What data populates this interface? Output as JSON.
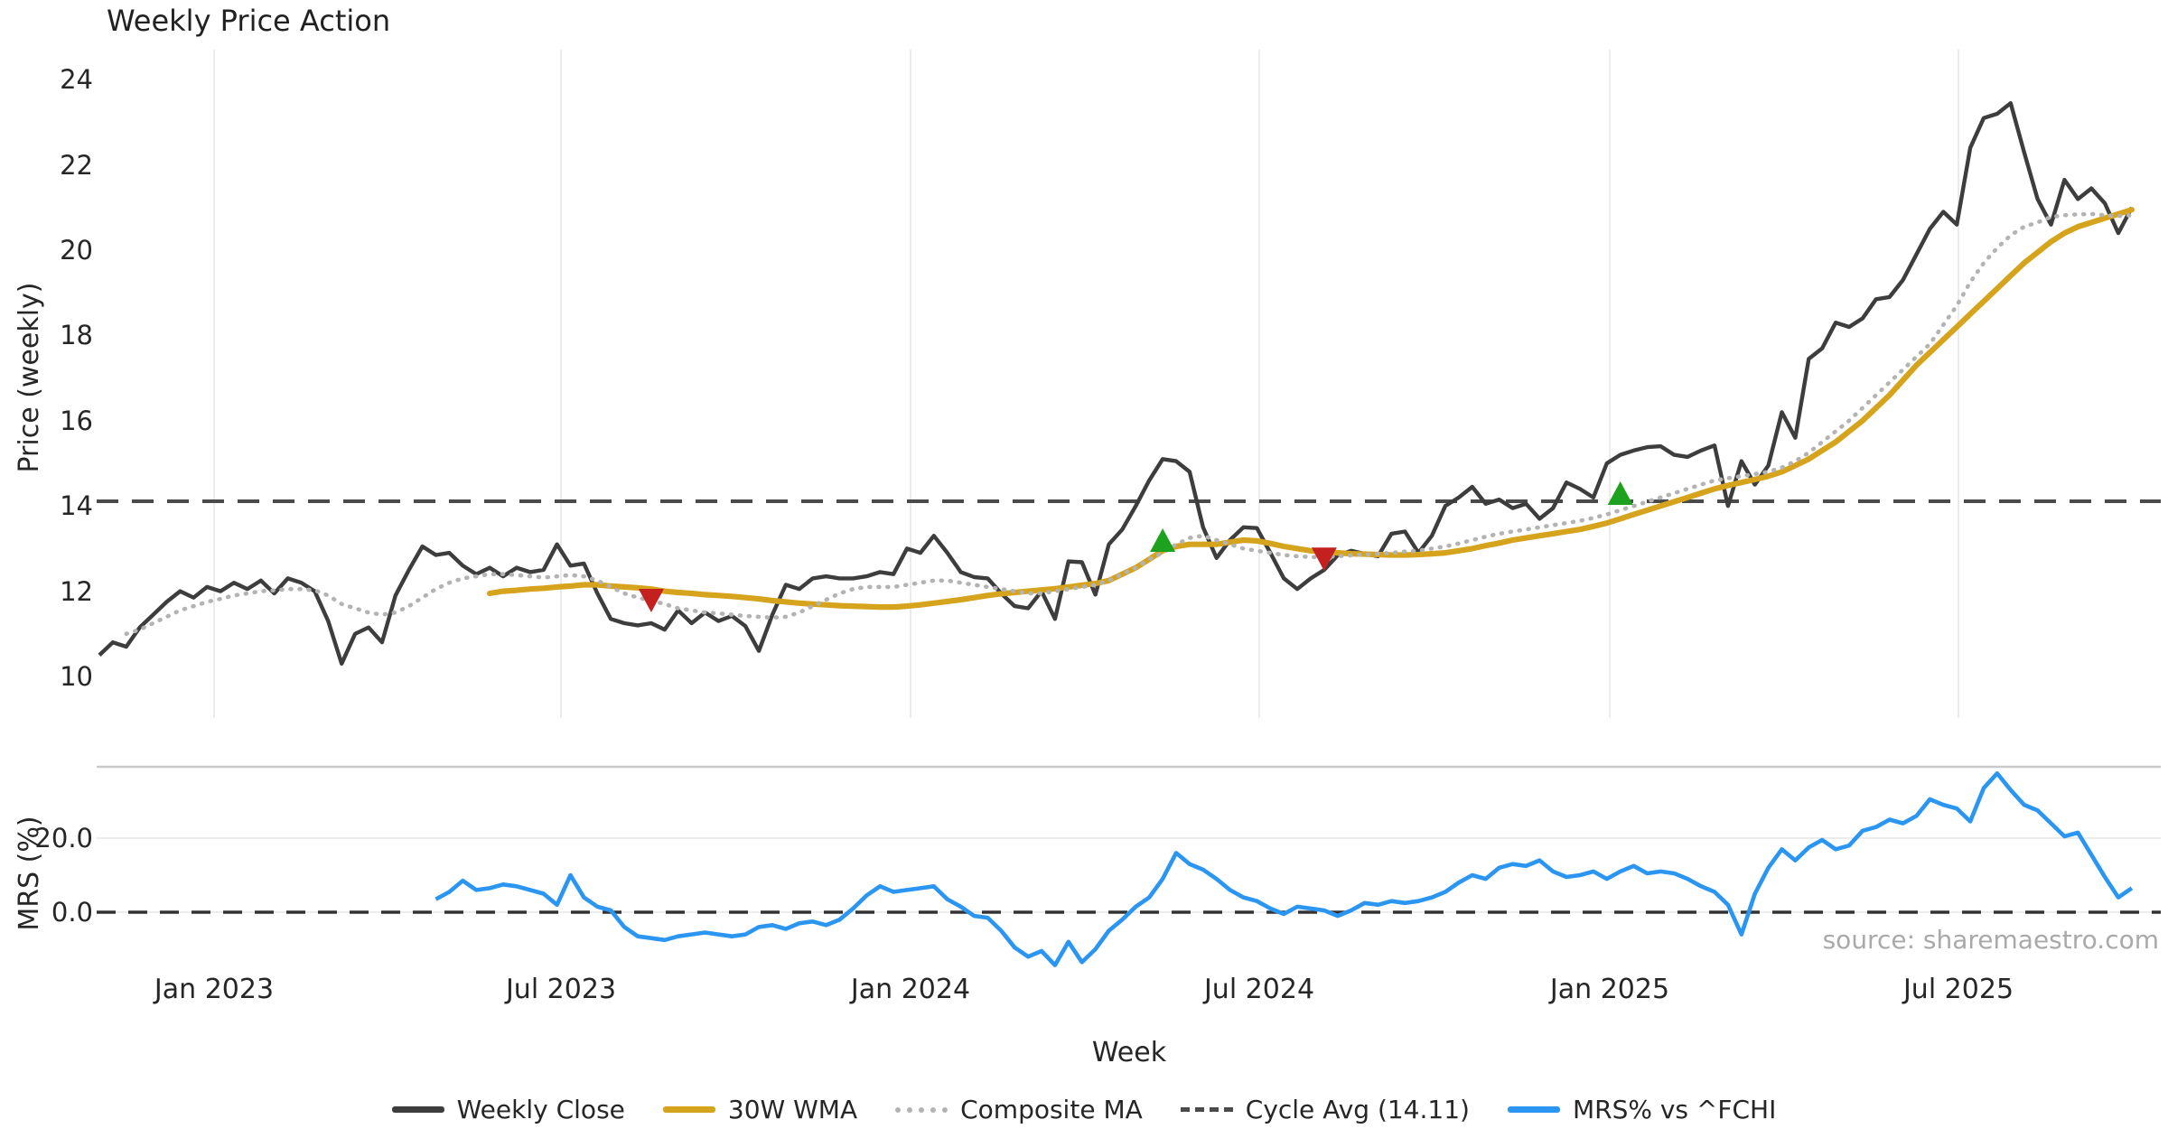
{
  "title": "Weekly Price Action",
  "source_text": "source: sharemaestro.com",
  "axes": {
    "price_label": "Price (weekly)",
    "price_ticks": [
      24,
      22,
      20,
      18,
      16,
      14,
      12,
      10
    ],
    "mrs_label": "MRS (%)",
    "mrs_ticks": [
      {
        "label": "20.0",
        "value": 20
      },
      {
        "label": "0.0",
        "value": 0
      }
    ],
    "x_label": "Week",
    "x_ticks": [
      {
        "label": "Jan 2023",
        "week": 8.5
      },
      {
        "label": "Jul 2023",
        "week": 34.3
      },
      {
        "label": "Jan 2024",
        "week": 60.3
      },
      {
        "label": "Jul 2024",
        "week": 86.2
      },
      {
        "label": "Jan 2025",
        "week": 112.2
      },
      {
        "label": "Jul 2025",
        "week": 138.1
      }
    ]
  },
  "legend": [
    {
      "label": "Weekly Close",
      "color": "#3d3d3d",
      "style": "solid"
    },
    {
      "label": "30W WMA",
      "color": "#d6a31d",
      "style": "solid"
    },
    {
      "label": "Composite MA",
      "color": "#b3b3b3",
      "style": "dotted"
    },
    {
      "label": "Cycle Avg (14.11)",
      "color": "#4a4a4a",
      "style": "dashed"
    },
    {
      "label": "MRS% vs ^FCHI",
      "color": "#2b96f2",
      "style": "solid"
    }
  ],
  "colors": {
    "background": "#ffffff",
    "grid": "#ececec",
    "spine": "#c9c9c9",
    "cycle_dash": "#4a4a4a",
    "zero_dash": "#333333",
    "buy_marker": "#1ca21c",
    "sell_marker": "#c42020"
  },
  "chart_data": {
    "type": "line",
    "title": "Weekly Price Action",
    "xlabel": "Week",
    "x_unit": "week_index",
    "total_weeks": 152,
    "panels": [
      {
        "name": "price",
        "ylabel": "Price (weekly)",
        "ylim": [
          9.1,
          24.7
        ],
        "grid": "vertical-only",
        "cycle_avg": 14.11,
        "series": [
          {
            "name": "Weekly Close",
            "start_week": 0,
            "values": [
              10.5,
              10.8,
              10.7,
              11.15,
              11.45,
              11.75,
              12.0,
              11.85,
              12.1,
              12.0,
              12.2,
              12.05,
              12.25,
              11.95,
              12.3,
              12.2,
              12.0,
              11.3,
              10.3,
              11.0,
              11.15,
              10.8,
              11.9,
              12.5,
              13.05,
              12.85,
              12.9,
              12.6,
              12.4,
              12.55,
              12.35,
              12.55,
              12.45,
              12.5,
              13.1,
              12.6,
              12.65,
              11.95,
              11.35,
              11.25,
              11.2,
              11.25,
              11.1,
              11.55,
              11.25,
              11.5,
              11.3,
              11.42,
              11.18,
              10.6,
              11.45,
              12.15,
              12.05,
              12.3,
              12.35,
              12.3,
              12.3,
              12.35,
              12.45,
              12.4,
              13.0,
              12.9,
              13.3,
              12.9,
              12.45,
              12.33,
              12.3,
              11.95,
              11.65,
              11.6,
              12.0,
              11.35,
              12.7,
              12.68,
              11.92,
              13.1,
              13.45,
              14.0,
              14.6,
              15.1,
              15.05,
              14.8,
              13.5,
              12.78,
              13.2,
              13.5,
              13.48,
              12.9,
              12.3,
              12.05,
              12.3,
              12.5,
              12.84,
              12.95,
              12.88,
              12.82,
              13.35,
              13.4,
              12.9,
              13.3,
              14.0,
              14.2,
              14.45,
              14.05,
              14.15,
              13.95,
              14.05,
              13.7,
              13.95,
              14.55,
              14.4,
              14.2,
              15.0,
              15.2,
              15.3,
              15.38,
              15.4,
              15.2,
              15.15,
              15.3,
              15.42,
              14.0,
              15.05,
              14.5,
              14.95,
              16.2,
              15.6,
              17.45,
              17.7,
              18.3,
              18.2,
              18.4,
              18.85,
              18.9,
              19.3,
              19.9,
              20.5,
              20.9,
              20.6,
              22.4,
              23.1,
              23.2,
              23.45,
              22.3,
              21.2,
              20.6,
              21.65,
              21.2,
              21.45,
              21.1,
              20.4,
              21.0
            ]
          },
          {
            "name": "30W WMA",
            "start_week": 29,
            "values": [
              11.95,
              12.0,
              12.02,
              12.05,
              12.07,
              12.1,
              12.12,
              12.15,
              12.15,
              12.12,
              12.1,
              12.08,
              12.05,
              12.0,
              11.97,
              11.95,
              11.92,
              11.9,
              11.88,
              11.85,
              11.82,
              11.78,
              11.75,
              11.72,
              11.7,
              11.68,
              11.66,
              11.65,
              11.64,
              11.63,
              11.63,
              11.65,
              11.68,
              11.72,
              11.76,
              11.8,
              11.85,
              11.9,
              11.94,
              11.97,
              12.0,
              12.03,
              12.06,
              12.1,
              12.14,
              12.18,
              12.25,
              12.4,
              12.55,
              12.75,
              12.95,
              13.05,
              13.1,
              13.1,
              13.1,
              13.15,
              13.2,
              13.18,
              13.12,
              13.05,
              13.0,
              12.95,
              12.92,
              12.9,
              12.88,
              12.87,
              12.86,
              12.85,
              12.85,
              12.86,
              12.88,
              12.9,
              12.95,
              13.0,
              13.07,
              13.13,
              13.2,
              13.25,
              13.3,
              13.35,
              13.4,
              13.45,
              13.52,
              13.6,
              13.7,
              13.8,
              13.9,
              14.0,
              14.1,
              14.2,
              14.3,
              14.4,
              14.48,
              14.55,
              14.62,
              14.7,
              14.8,
              14.95,
              15.1,
              15.3,
              15.5,
              15.75,
              16.0,
              16.3,
              16.6,
              16.95,
              17.3,
              17.6,
              17.9,
              18.2,
              18.5,
              18.8,
              19.1,
              19.4,
              19.7,
              19.95,
              20.2,
              20.4,
              20.55,
              20.65,
              20.75,
              20.85,
              20.95
            ]
          },
          {
            "name": "Composite MA",
            "start_week": 2,
            "values": [
              11.0,
              11.1,
              11.25,
              11.4,
              11.55,
              11.65,
              11.75,
              11.82,
              11.9,
              11.95,
              12.0,
              12.02,
              12.05,
              12.05,
              12.02,
              11.9,
              11.7,
              11.6,
              11.5,
              11.45,
              11.5,
              11.65,
              11.85,
              12.05,
              12.2,
              12.3,
              12.35,
              12.4,
              12.4,
              12.38,
              12.35,
              12.32,
              12.35,
              12.38,
              12.35,
              12.25,
              12.1,
              11.95,
              11.85,
              11.78,
              11.7,
              11.6,
              11.55,
              11.5,
              11.48,
              11.45,
              11.42,
              11.4,
              11.38,
              11.4,
              11.5,
              11.65,
              11.8,
              11.95,
              12.05,
              12.1,
              12.1,
              12.1,
              12.15,
              12.2,
              12.25,
              12.25,
              12.2,
              12.15,
              12.1,
              12.05,
              12.0,
              11.95,
              11.95,
              12.0,
              12.05,
              12.1,
              12.15,
              12.25,
              12.4,
              12.55,
              12.75,
              12.9,
              13.1,
              13.25,
              13.3,
              13.2,
              13.1,
              13.0,
              12.95,
              12.9,
              12.85,
              12.82,
              12.8,
              12.8,
              12.82,
              12.84,
              12.86,
              12.88,
              12.9,
              12.93,
              12.95,
              13.0,
              13.05,
              13.12,
              13.2,
              13.28,
              13.35,
              13.4,
              13.45,
              13.5,
              13.55,
              13.6,
              13.65,
              13.72,
              13.8,
              13.9,
              14.0,
              14.1,
              14.2,
              14.3,
              14.4,
              14.5,
              14.6,
              14.65,
              14.7,
              14.75,
              14.8,
              14.9,
              15.05,
              15.25,
              15.5,
              15.75,
              16.0,
              16.3,
              16.6,
              16.9,
              17.2,
              17.5,
              17.8,
              18.25,
              18.7,
              19.25,
              19.7,
              20.05,
              20.35,
              20.55,
              20.65,
              20.78,
              20.82,
              20.84,
              20.85,
              20.82,
              20.8,
              20.82
            ]
          }
        ],
        "markers": [
          {
            "type": "sell",
            "shape": "triangle-down",
            "week": 41,
            "price": 11.78
          },
          {
            "type": "buy",
            "shape": "triangle-up",
            "week": 79,
            "price": 13.2
          },
          {
            "type": "sell",
            "shape": "triangle-down",
            "week": 91,
            "price": 12.75
          },
          {
            "type": "buy",
            "shape": "triangle-up",
            "week": 113,
            "price": 14.3
          }
        ]
      },
      {
        "name": "mrs",
        "ylabel": "MRS (%)",
        "ylim": [
          -25,
          43
        ],
        "zero_line": 0,
        "gridline_at": 20,
        "series": [
          {
            "name": "MRS% vs ^FCHI",
            "start_week": 25,
            "values": [
              3.5,
              5.5,
              8.5,
              6,
              6.5,
              7.5,
              7,
              6,
              5,
              2,
              10,
              4,
              1.5,
              0.5,
              -4,
              -6.5,
              -7,
              -7.5,
              -6.5,
              -6,
              -5.5,
              -6,
              -6.5,
              -6,
              -4,
              -3.5,
              -4.5,
              -3,
              -2.5,
              -3.5,
              -2,
              1,
              4.5,
              7,
              5.5,
              6,
              6.5,
              7,
              3.5,
              1.5,
              -1,
              -1.5,
              -5,
              -9.5,
              -12,
              -10.5,
              -14.3,
              -8,
              -13.5,
              -10,
              -5,
              -2,
              1.5,
              4,
              9,
              16,
              13,
              11.5,
              9,
              6,
              4,
              3,
              1,
              -0.5,
              1.5,
              1,
              0.5,
              -1,
              0.5,
              2.5,
              2,
              3,
              2.5,
              3,
              4,
              5.5,
              8,
              10,
              9,
              12,
              13,
              12.5,
              14,
              11,
              9.5,
              10,
              11,
              9,
              11,
              12.5,
              10.5,
              11,
              10.5,
              9,
              7,
              5.5,
              2,
              -6,
              5,
              12,
              17,
              14,
              17.5,
              19.5,
              17,
              18,
              22,
              23,
              25,
              24,
              26,
              30.5,
              29,
              28,
              24.5,
              33.5,
              37.5,
              33,
              29,
              27.5,
              24,
              20.5,
              21.5,
              15.5,
              9.5,
              4,
              6.5
            ]
          }
        ]
      }
    ]
  }
}
